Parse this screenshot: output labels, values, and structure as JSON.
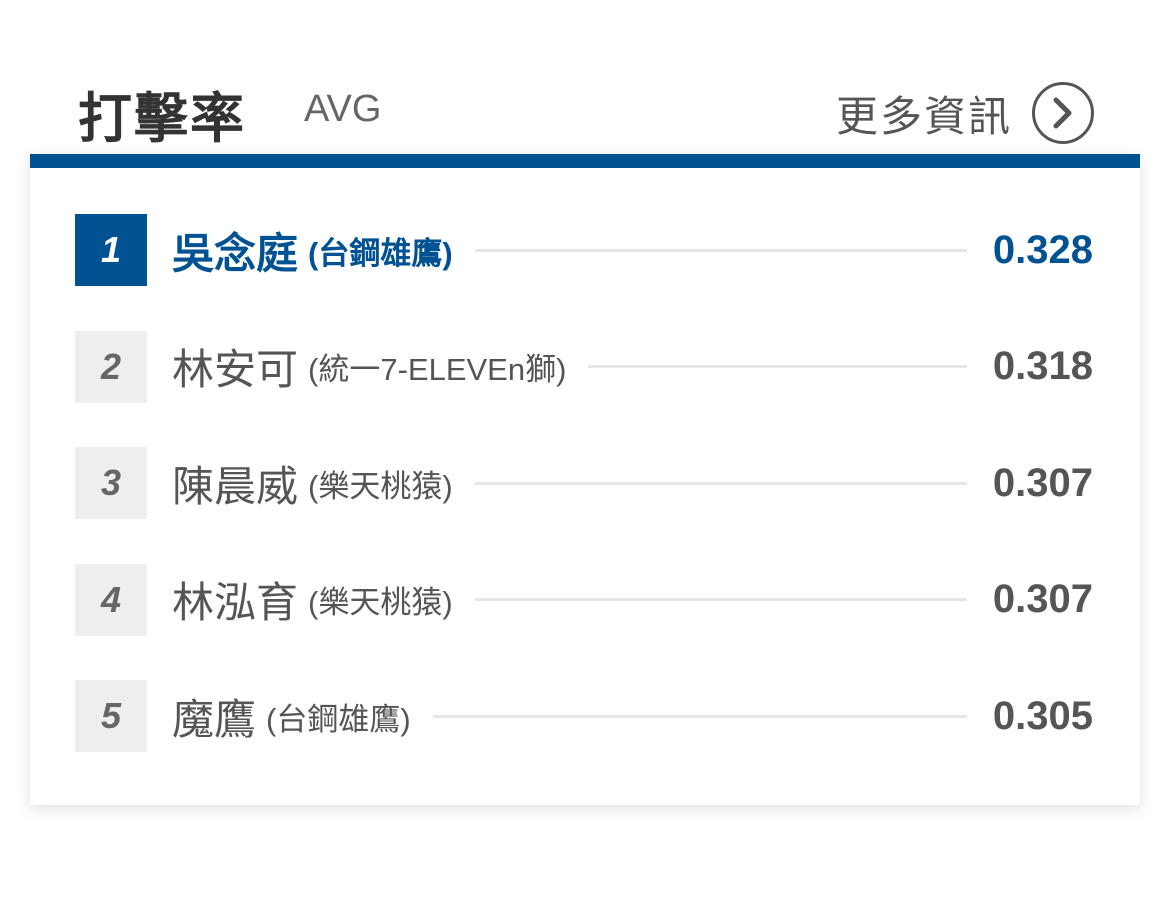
{
  "header": {
    "title": "打擊率",
    "subtitle": "AVG",
    "more_label": "更多資訊",
    "more_icon": "chevron-right-circle-icon"
  },
  "colors": {
    "accent": "#005293",
    "rank_bg": "#eeeeee",
    "rank_text": "#666666",
    "text": "#555555"
  },
  "leaders": [
    {
      "rank": "1",
      "name": "吳念庭",
      "team": "(台鋼雄鷹)",
      "value": "0.328"
    },
    {
      "rank": "2",
      "name": "林安可",
      "team": "(統一7-ELEVEn獅)",
      "value": "0.318"
    },
    {
      "rank": "3",
      "name": "陳晨威",
      "team": "(樂天桃猿)",
      "value": "0.307"
    },
    {
      "rank": "4",
      "name": "林泓育",
      "team": "(樂天桃猿)",
      "value": "0.307"
    },
    {
      "rank": "5",
      "name": "魔鷹",
      "team": "(台鋼雄鷹)",
      "value": "0.305"
    }
  ]
}
